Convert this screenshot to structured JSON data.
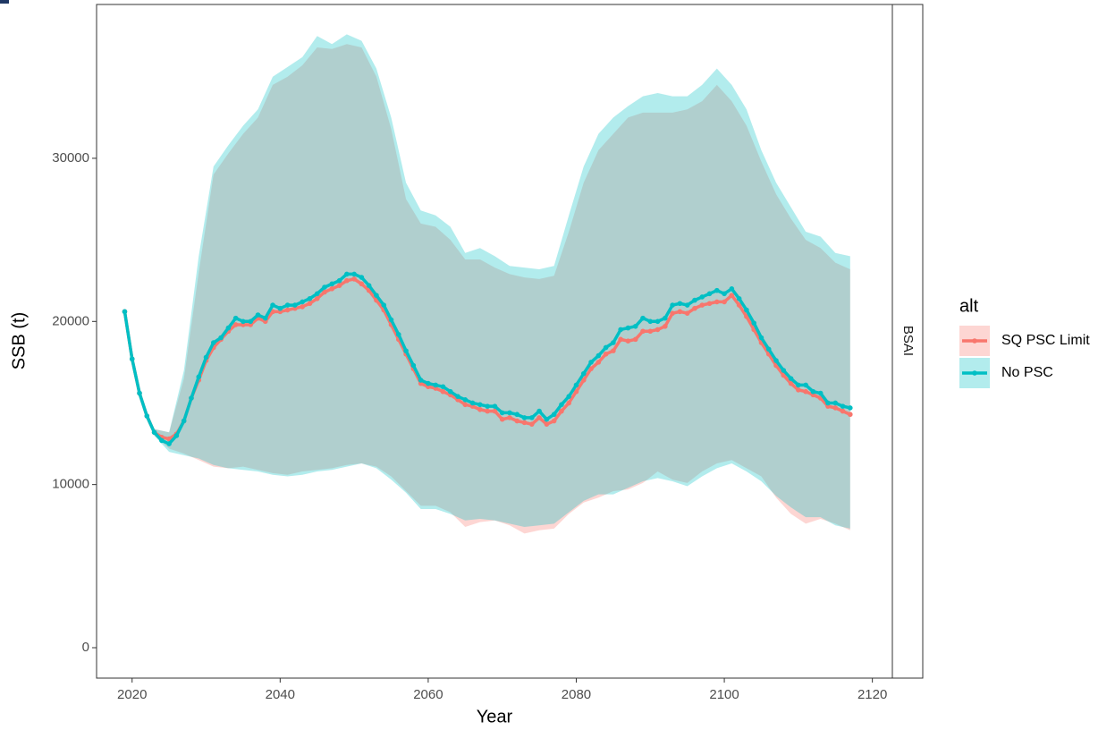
{
  "chart_data": {
    "type": "line",
    "x_label": "Year",
    "y_label": "SSB (t)",
    "facet_label": "BSAI",
    "legend_title": "alt",
    "xlim": [
      2015.2,
      2122.7
    ],
    "xticks": [
      2020,
      2040,
      2060,
      2080,
      2100,
      2120
    ],
    "ylim": [
      -1865,
      39430
    ],
    "yticks": [
      0,
      10000,
      20000,
      30000
    ],
    "grid": false,
    "legend_position": "right",
    "x": [
      2019,
      2020,
      2021,
      2022,
      2023,
      2024,
      2025,
      2026,
      2027,
      2028,
      2029,
      2030,
      2031,
      2032,
      2033,
      2034,
      2035,
      2036,
      2037,
      2038,
      2039,
      2040,
      2041,
      2042,
      2043,
      2044,
      2045,
      2046,
      2047,
      2048,
      2049,
      2050,
      2051,
      2052,
      2053,
      2054,
      2055,
      2056,
      2057,
      2058,
      2059,
      2060,
      2061,
      2062,
      2063,
      2064,
      2065,
      2066,
      2067,
      2068,
      2069,
      2070,
      2071,
      2072,
      2073,
      2074,
      2075,
      2076,
      2077,
      2078,
      2079,
      2080,
      2081,
      2082,
      2083,
      2084,
      2085,
      2086,
      2087,
      2088,
      2089,
      2090,
      2091,
      2092,
      2093,
      2094,
      2095,
      2096,
      2097,
      2098,
      2099,
      2100,
      2101,
      2102,
      2103,
      2104,
      2105,
      2106,
      2107,
      2108,
      2109,
      2110,
      2111,
      2112,
      2113,
      2114,
      2115,
      2116,
      2117
    ],
    "ribbon_x": [
      2019,
      2021,
      2023,
      2025,
      2027,
      2029,
      2031,
      2033,
      2035,
      2037,
      2039,
      2041,
      2043,
      2045,
      2047,
      2049,
      2051,
      2053,
      2055,
      2057,
      2059,
      2061,
      2063,
      2065,
      2067,
      2069,
      2071,
      2073,
      2075,
      2077,
      2079,
      2081,
      2083,
      2085,
      2087,
      2089,
      2091,
      2093,
      2095,
      2097,
      2099,
      2101,
      2103,
      2105,
      2107,
      2109,
      2111,
      2113,
      2115,
      2117
    ],
    "series": [
      {
        "name": "SQ PSC Limit",
        "color": "#F8766D",
        "values": [
          20600,
          17700,
          15600,
          14200,
          13200,
          12900,
          12800,
          13100,
          13900,
          15300,
          16400,
          17600,
          18400,
          18900,
          19400,
          19800,
          19800,
          19800,
          20200,
          20000,
          20600,
          20600,
          20700,
          20800,
          20900,
          21100,
          21400,
          21800,
          22000,
          22200,
          22500,
          22600,
          22300,
          21900,
          21300,
          20700,
          19800,
          18900,
          18000,
          17100,
          16200,
          16000,
          15900,
          15700,
          15500,
          15200,
          14900,
          14800,
          14600,
          14500,
          14500,
          14000,
          14100,
          13900,
          13800,
          13700,
          14100,
          13700,
          13900,
          14500,
          15000,
          15700,
          16400,
          17100,
          17500,
          18000,
          18200,
          18900,
          18800,
          18900,
          19400,
          19400,
          19500,
          19700,
          20500,
          20600,
          20500,
          20800,
          21000,
          21100,
          21200,
          21200,
          21600,
          21000,
          20300,
          19500,
          18700,
          18000,
          17300,
          16700,
          16200,
          15800,
          15700,
          15500,
          15300,
          14800,
          14700,
          14500,
          14300
        ],
        "upper": [
          20600,
          15600,
          13400,
          13200,
          16500,
          23000,
          29000,
          30300,
          31500,
          32500,
          34500,
          35000,
          35700,
          36800,
          36700,
          37000,
          36800,
          35000,
          31800,
          27500,
          26000,
          25800,
          25000,
          23800,
          23800,
          23300,
          22900,
          22700,
          22600,
          22800,
          25500,
          28500,
          30500,
          31500,
          32500,
          32800,
          32800,
          32800,
          33000,
          33500,
          34500,
          33500,
          32000,
          29800,
          27800,
          26300,
          25000,
          24500,
          23600,
          23200
        ],
        "lower": [
          20600,
          15600,
          13000,
          12200,
          11900,
          11500,
          11100,
          11000,
          11100,
          10900,
          10700,
          10600,
          10800,
          10900,
          11000,
          11200,
          11300,
          11100,
          10500,
          9600,
          8700,
          8700,
          8300,
          7400,
          7700,
          7800,
          7500,
          7000,
          7200,
          7300,
          8200,
          8900,
          9200,
          9600,
          9700,
          10100,
          10800,
          10300,
          10100,
          10800,
          11300,
          11500,
          11000,
          10500,
          9200,
          8200,
          7600,
          7900,
          7600,
          7200
        ]
      },
      {
        "name": "No PSC",
        "color": "#00BFC4",
        "values": [
          20600,
          17700,
          15600,
          14200,
          13200,
          12700,
          12500,
          13000,
          13900,
          15300,
          16600,
          17800,
          18700,
          19000,
          19600,
          20200,
          20000,
          20000,
          20400,
          20200,
          21000,
          20800,
          21000,
          21000,
          21200,
          21400,
          21700,
          22100,
          22300,
          22500,
          22900,
          22900,
          22700,
          22200,
          21600,
          21000,
          20100,
          19200,
          18200,
          17300,
          16400,
          16200,
          16100,
          16000,
          15700,
          15400,
          15200,
          15000,
          14900,
          14800,
          14800,
          14400,
          14400,
          14300,
          14100,
          14100,
          14500,
          14000,
          14300,
          14900,
          15400,
          16100,
          16800,
          17500,
          17900,
          18400,
          18700,
          19500,
          19600,
          19700,
          20200,
          20000,
          20000,
          20200,
          21000,
          21100,
          21000,
          21300,
          21500,
          21700,
          21900,
          21700,
          22000,
          21400,
          20700,
          19900,
          19000,
          18300,
          17600,
          17000,
          16500,
          16100,
          16100,
          15700,
          15600,
          15000,
          15000,
          14800,
          14700
        ],
        "upper": [
          20600,
          15600,
          13400,
          13200,
          17000,
          24000,
          29500,
          30800,
          32000,
          33000,
          35000,
          35600,
          36200,
          37500,
          37000,
          37600,
          37200,
          35500,
          32500,
          28500,
          26800,
          26500,
          25800,
          24200,
          24500,
          24000,
          23400,
          23300,
          23200,
          23400,
          26500,
          29500,
          31500,
          32500,
          33200,
          33800,
          34000,
          33800,
          33800,
          34500,
          35500,
          34500,
          33000,
          30500,
          28500,
          27000,
          25500,
          25200,
          24200,
          24000
        ],
        "lower": [
          20600,
          15600,
          13000,
          12000,
          11800,
          11600,
          11200,
          11000,
          10900,
          10800,
          10600,
          10500,
          10600,
          10800,
          10900,
          11100,
          11300,
          11000,
          10300,
          9500,
          8500,
          8500,
          8200,
          7800,
          7900,
          7800,
          7600,
          7400,
          7500,
          7600,
          8300,
          9000,
          9400,
          9400,
          9800,
          10200,
          10400,
          10200,
          9900,
          10500,
          11000,
          11300,
          10800,
          10200,
          9300,
          8600,
          8000,
          8000,
          7500,
          7300
        ]
      }
    ]
  }
}
